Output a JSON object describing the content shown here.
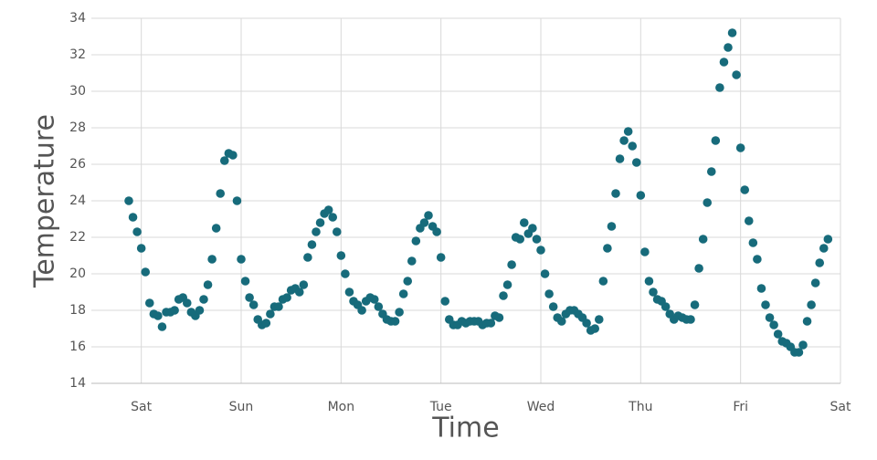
{
  "chart_data": {
    "type": "scatter",
    "x_label": "Time",
    "y_label": "Temperature",
    "color": "#176b7b",
    "grid": true,
    "xlim": [
      -12,
      168
    ],
    "ylim": [
      14,
      34
    ],
    "xticks": [
      {
        "value": 0,
        "label": "Sat"
      },
      {
        "value": 24,
        "label": "Sun"
      },
      {
        "value": 48,
        "label": "Mon"
      },
      {
        "value": 72,
        "label": "Tue"
      },
      {
        "value": 96,
        "label": "Wed"
      },
      {
        "value": 120,
        "label": "Thu"
      },
      {
        "value": 144,
        "label": "Fri"
      },
      {
        "value": 168,
        "label": "Sat"
      }
    ],
    "yticks": [
      14,
      16,
      18,
      20,
      22,
      24,
      26,
      28,
      30,
      32,
      34
    ],
    "x": [
      -3,
      -2,
      -1,
      0,
      1,
      2,
      3,
      4,
      5,
      6,
      7,
      8,
      9,
      10,
      11,
      12,
      13,
      14,
      15,
      16,
      17,
      18,
      19,
      20,
      21,
      22,
      23,
      24,
      25,
      26,
      27,
      28,
      29,
      30,
      31,
      32,
      33,
      34,
      35,
      36,
      37,
      38,
      39,
      40,
      41,
      42,
      43,
      44,
      45,
      46,
      47,
      48,
      49,
      50,
      51,
      52,
      53,
      54,
      55,
      56,
      57,
      58,
      59,
      60,
      61,
      62,
      63,
      64,
      65,
      66,
      67,
      68,
      69,
      70,
      71,
      72,
      73,
      74,
      75,
      76,
      77,
      78,
      79,
      80,
      81,
      82,
      83,
      84,
      85,
      86,
      87,
      88,
      89,
      90,
      91,
      92,
      93,
      94,
      95,
      96,
      97,
      98,
      99,
      100,
      101,
      102,
      103,
      104,
      105,
      106,
      107,
      108,
      109,
      110,
      111,
      112,
      113,
      114,
      115,
      116,
      117,
      118,
      119,
      120,
      121,
      122,
      123,
      124,
      125,
      126,
      127,
      128,
      129,
      130,
      131,
      132,
      133,
      134,
      135,
      136,
      137,
      138,
      139,
      140,
      141,
      142,
      143,
      144,
      145,
      146,
      147,
      148,
      149,
      150,
      151,
      152,
      153,
      154,
      155,
      156,
      157,
      158,
      159,
      160,
      161,
      162,
      163,
      164,
      165
    ],
    "values": [
      24.0,
      23.1,
      22.3,
      21.4,
      20.1,
      18.4,
      17.8,
      17.7,
      17.1,
      17.9,
      17.9,
      18.0,
      18.6,
      18.7,
      18.4,
      17.9,
      17.7,
      18.0,
      18.6,
      19.4,
      20.8,
      22.5,
      24.4,
      26.2,
      26.6,
      26.5,
      24.0,
      20.8,
      19.6,
      18.7,
      18.3,
      17.5,
      17.2,
      17.3,
      17.8,
      18.2,
      18.2,
      18.6,
      18.7,
      19.1,
      19.2,
      19.0,
      19.4,
      20.9,
      21.6,
      22.3,
      22.8,
      23.3,
      23.5,
      23.1,
      22.3,
      21.0,
      20.0,
      19.0,
      18.5,
      18.3,
      18.0,
      18.5,
      18.7,
      18.6,
      18.2,
      17.8,
      17.5,
      17.4,
      17.4,
      17.9,
      18.9,
      19.6,
      20.7,
      21.8,
      22.5,
      22.8,
      23.2,
      22.6,
      22.3,
      20.9,
      18.5,
      17.5,
      17.2,
      17.2,
      17.4,
      17.3,
      17.4,
      17.4,
      17.4,
      17.2,
      17.3,
      17.3,
      17.7,
      17.6,
      18.8,
      19.4,
      20.5,
      22.0,
      21.9,
      22.8,
      22.2,
      22.5,
      21.9,
      21.3,
      20.0,
      18.9,
      18.2,
      17.6,
      17.4,
      17.8,
      18.0,
      18.0,
      17.8,
      17.6,
      17.3,
      16.9,
      17.0,
      17.5,
      19.6,
      21.4,
      22.6,
      24.4,
      26.3,
      27.3,
      27.8,
      27.0,
      26.1,
      24.3,
      21.2,
      19.6,
      19.0,
      18.6,
      18.5,
      18.2,
      17.8,
      17.5,
      17.7,
      17.6,
      17.5,
      17.5,
      18.3,
      20.3,
      21.9,
      23.9,
      25.6,
      27.3,
      30.2,
      31.6,
      32.4,
      33.2,
      30.9,
      26.9,
      24.6,
      22.9,
      21.7,
      20.8,
      19.2,
      18.3,
      17.6,
      17.2,
      16.7,
      16.3,
      16.2,
      16.0,
      15.7,
      15.7,
      16.1,
      17.4,
      18.3,
      19.5,
      20.6,
      21.4,
      21.9
    ]
  }
}
